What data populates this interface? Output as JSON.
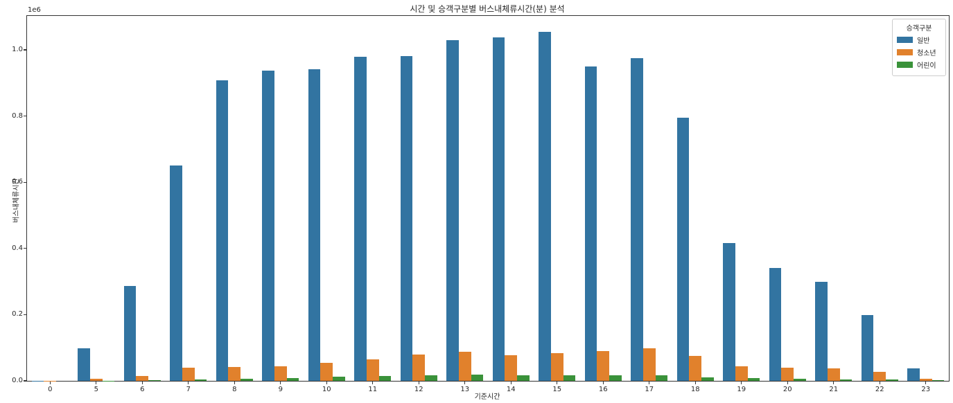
{
  "figure": {
    "y_offset_label": "1e6"
  },
  "chart_data": {
    "type": "bar",
    "title": "시간 및 승객구분별 버스내체류시간(분) 분석",
    "xlabel": "기준시간",
    "ylabel": "버스내체류시간",
    "legend_title": "승객구분",
    "legend_position": "upper right",
    "grid": false,
    "y_offset_label": "1e6",
    "ylim": [
      0,
      1102500
    ],
    "yticks": [
      0,
      200000,
      400000,
      600000,
      800000,
      1000000
    ],
    "ytick_labels": [
      "0.0",
      "0.2",
      "0.4",
      "0.6",
      "0.8",
      "1.0"
    ],
    "categories": [
      "0",
      "5",
      "6",
      "7",
      "8",
      "9",
      "10",
      "11",
      "12",
      "13",
      "14",
      "15",
      "16",
      "17",
      "18",
      "19",
      "20",
      "21",
      "22",
      "23"
    ],
    "series": [
      {
        "name": "일반",
        "key": "general",
        "color": "#3274a1",
        "values": [
          500,
          98000,
          287000,
          650000,
          908000,
          937000,
          941000,
          979000,
          981000,
          1029000,
          1038000,
          1054000,
          950000,
          975000,
          795000,
          416000,
          341000,
          299000,
          199000,
          38000
        ]
      },
      {
        "name": "청소년",
        "key": "youth",
        "color": "#e1812c",
        "values": [
          200,
          6000,
          15000,
          40000,
          42000,
          44000,
          54000,
          65000,
          79000,
          88000,
          77000,
          84000,
          90000,
          98000,
          75000,
          44000,
          40000,
          38000,
          27000,
          6000
        ]
      },
      {
        "name": "어린이",
        "key": "child",
        "color": "#3a923a",
        "values": [
          100,
          1000,
          3000,
          4000,
          6000,
          8000,
          13000,
          15000,
          17000,
          19000,
          17000,
          16000,
          17000,
          16000,
          10000,
          8000,
          6000,
          5000,
          4000,
          2000
        ]
      }
    ]
  }
}
